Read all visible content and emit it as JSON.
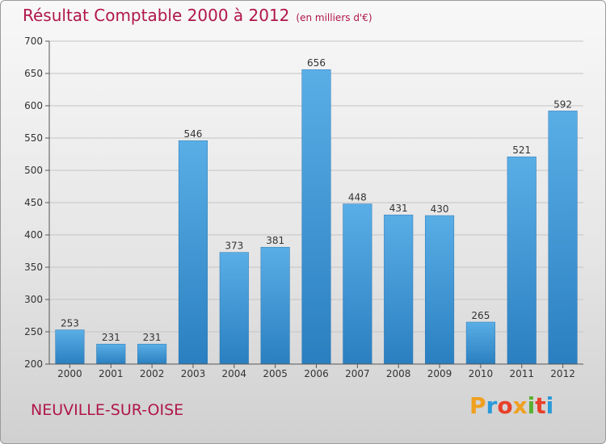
{
  "header": {
    "title": "Résultat Comptable 2000 à 2012",
    "subtitle": "(en milliers d'€)"
  },
  "location": "NEUVILLE-SUR-OISE",
  "brand": {
    "letters": [
      "P",
      "r",
      "o",
      "x",
      "i",
      "t",
      "i"
    ],
    "colors": [
      "#f0a020",
      "#2a9ad8",
      "#e8402a",
      "#f0a020",
      "#5ab030",
      "#e8402a",
      "#2a9ad8"
    ]
  },
  "chart_data": {
    "type": "bar",
    "title": "Résultat Comptable 2000 à 2012",
    "subtitle": "(en milliers d'€)",
    "xlabel": "",
    "ylabel": "",
    "categories": [
      "2000",
      "2001",
      "2002",
      "2003",
      "2004",
      "2005",
      "2006",
      "2007",
      "2008",
      "2009",
      "2010",
      "2011",
      "2012"
    ],
    "values": [
      253,
      231,
      231,
      546,
      373,
      381,
      656,
      448,
      431,
      430,
      265,
      521,
      592
    ],
    "ylim": [
      200,
      700
    ],
    "yticks": [
      200,
      250,
      300,
      350,
      400,
      450,
      500,
      550,
      600,
      650,
      700
    ],
    "grid": true,
    "bar_color": "#3d9ad9"
  }
}
